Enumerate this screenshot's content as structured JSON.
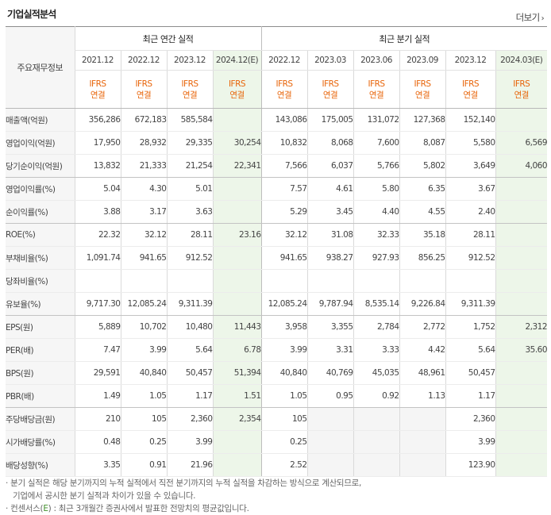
{
  "header": {
    "title": "기업실적분석",
    "more_label": "더보기",
    "more_icon": "chevron-right"
  },
  "table": {
    "row_header_label": "주요재무정보",
    "groups": [
      {
        "label": "최근 연간 실적"
      },
      {
        "label": "최근 분기 실적"
      }
    ],
    "periods": [
      {
        "label": "2021.12",
        "ifrs": "IFRS",
        "basis": "연결",
        "forecast": false
      },
      {
        "label": "2022.12",
        "ifrs": "IFRS",
        "basis": "연결",
        "forecast": false
      },
      {
        "label": "2023.12",
        "ifrs": "IFRS",
        "basis": "연결",
        "forecast": false
      },
      {
        "label": "2024.12(E)",
        "ifrs": "IFRS",
        "basis": "연결",
        "forecast": true
      },
      {
        "label": "2022.12",
        "ifrs": "IFRS",
        "basis": "연결",
        "forecast": false
      },
      {
        "label": "2023.03",
        "ifrs": "IFRS",
        "basis": "연결",
        "forecast": false
      },
      {
        "label": "2023.06",
        "ifrs": "IFRS",
        "basis": "연결",
        "forecast": false
      },
      {
        "label": "2023.09",
        "ifrs": "IFRS",
        "basis": "연결",
        "forecast": false
      },
      {
        "label": "2023.12",
        "ifrs": "IFRS",
        "basis": "연결",
        "forecast": false
      },
      {
        "label": "2024.03(E)",
        "ifrs": "IFRS",
        "basis": "연결",
        "forecast": true
      }
    ],
    "rows": [
      {
        "label": "매출액(억원)",
        "values": [
          "356,286",
          "672,183",
          "585,584",
          "",
          "143,086",
          "175,005",
          "131,072",
          "127,368",
          "152,140",
          ""
        ]
      },
      {
        "label": "영업이익(억원)",
        "values": [
          "17,950",
          "28,932",
          "29,335",
          "30,254",
          "10,832",
          "8,068",
          "7,600",
          "8,087",
          "5,580",
          "6,569"
        ]
      },
      {
        "label": "당기순이익(억원)",
        "values": [
          "13,832",
          "21,333",
          "21,254",
          "22,341",
          "7,566",
          "6,037",
          "5,766",
          "5,802",
          "3,649",
          "4,060"
        ]
      },
      {
        "label": "영업이익률(%)",
        "values": [
          "5.04",
          "4.30",
          "5.01",
          "",
          "7.57",
          "4.61",
          "5.80",
          "6.35",
          "3.67",
          ""
        ]
      },
      {
        "label": "순이익률(%)",
        "values": [
          "3.88",
          "3.17",
          "3.63",
          "",
          "5.29",
          "3.45",
          "4.40",
          "4.55",
          "2.40",
          ""
        ]
      },
      {
        "label": "ROE(%)",
        "values": [
          "22.32",
          "32.12",
          "28.11",
          "23.16",
          "32.12",
          "31.08",
          "32.33",
          "35.18",
          "28.11",
          ""
        ]
      },
      {
        "label": "부채비율(%)",
        "values": [
          "1,091.74",
          "941.65",
          "912.52",
          "",
          "941.65",
          "938.27",
          "927.93",
          "856.25",
          "912.52",
          ""
        ]
      },
      {
        "label": "당좌비율(%)",
        "values": [
          "",
          "",
          "",
          "",
          "",
          "",
          "",
          "",
          "",
          ""
        ]
      },
      {
        "label": "유보율(%)",
        "values": [
          "9,717.30",
          "12,085.24",
          "9,311.39",
          "",
          "12,085.24",
          "9,787.94",
          "8,535.14",
          "9,226.84",
          "9,311.39",
          ""
        ]
      },
      {
        "label": "EPS(원)",
        "values": [
          "5,889",
          "10,702",
          "10,480",
          "11,443",
          "3,958",
          "3,355",
          "2,784",
          "2,772",
          "1,752",
          "2,312"
        ]
      },
      {
        "label": "PER(배)",
        "values": [
          "7.47",
          "3.99",
          "5.64",
          "6.78",
          "3.99",
          "3.31",
          "3.33",
          "4.42",
          "5.64",
          "35.60"
        ]
      },
      {
        "label": "BPS(원)",
        "values": [
          "29,591",
          "40,840",
          "50,457",
          "51,394",
          "40,840",
          "40,769",
          "45,035",
          "48,961",
          "50,457",
          ""
        ]
      },
      {
        "label": "PBR(배)",
        "values": [
          "1.49",
          "1.05",
          "1.17",
          "1.51",
          "1.05",
          "0.95",
          "0.92",
          "1.13",
          "1.17",
          ""
        ]
      },
      {
        "label": "주당배당금(원)",
        "values": [
          "210",
          "105",
          "2,360",
          "2,354",
          "105",
          "",
          "",
          "",
          "2,360",
          ""
        ]
      },
      {
        "label": "시가배당률(%)",
        "values": [
          "0.48",
          "0.25",
          "3.99",
          "",
          "0.25",
          "",
          "",
          "",
          "3.99",
          ""
        ]
      },
      {
        "label": "배당성향(%)",
        "values": [
          "3.35",
          "0.91",
          "21.96",
          "",
          "2.52",
          "",
          "",
          "",
          "123.90",
          ""
        ]
      }
    ]
  },
  "notes": {
    "line1": "분기 실적은 해당 분기까지의 누적 실적에서 직전 분기까지의 누적 실적을 차감하는 방식으로 계산되므로,",
    "line2": "기업에서 공시한 분기 실적과 차이가 있을 수 있습니다.",
    "line3_prefix": "컨센서스(",
    "line3_mark": "E",
    "line3_rest": ") : 최근 3개월간 증권사에서 발표한 전망치의 평균값입니다."
  }
}
